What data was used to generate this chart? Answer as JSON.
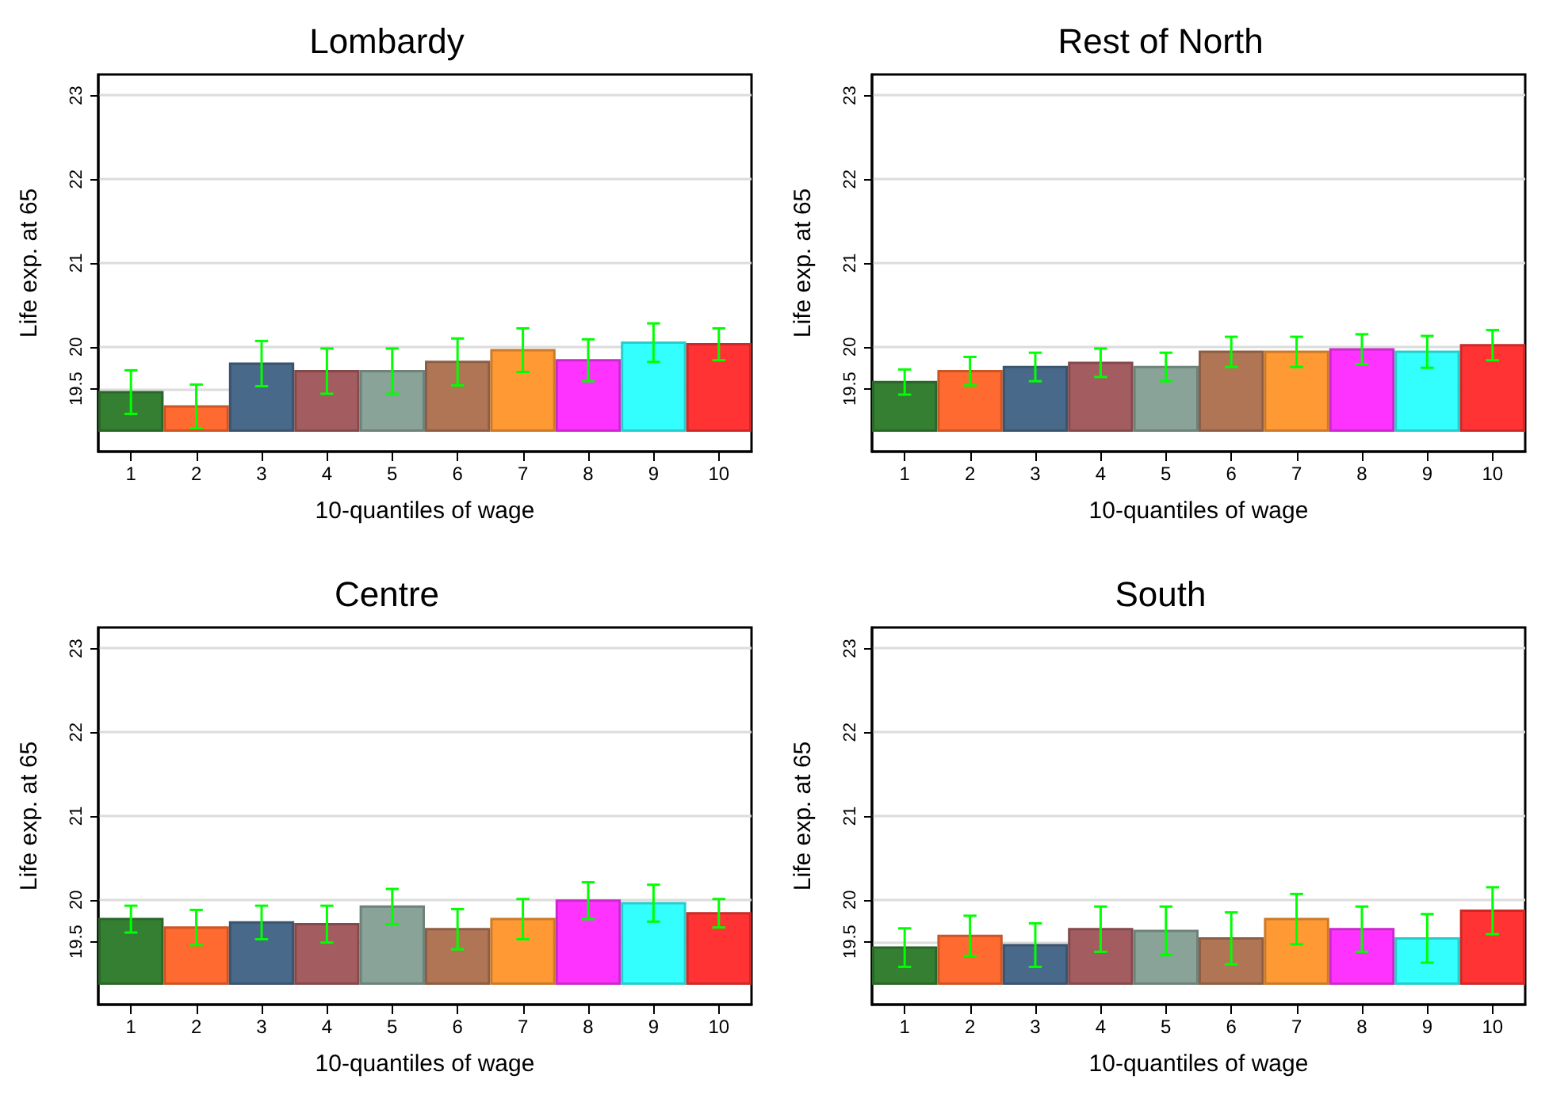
{
  "chart_data": [
    {
      "type": "bar",
      "title": "Lombardy",
      "xlabel": "10-quantiles of wage",
      "ylabel": "Life exp. at 65",
      "categories": [
        "1",
        "2",
        "3",
        "4",
        "5",
        "6",
        "7",
        "8",
        "9",
        "10"
      ],
      "base": [
        19,
        19,
        19,
        19,
        19,
        19,
        19,
        19,
        19,
        19
      ],
      "values": [
        0.46,
        0.29,
        0.8,
        0.71,
        0.71,
        0.82,
        0.96,
        0.84,
        1.05,
        1.03
      ],
      "errors": [
        0.26,
        0.26,
        0.27,
        0.27,
        0.27,
        0.28,
        0.26,
        0.25,
        0.23,
        0.19
      ],
      "colors": [
        "#347f32",
        "#ff6a30",
        "#48698a",
        "#a35c60",
        "#89a398",
        "#b07555",
        "#ff9933",
        "#ff33ff",
        "#33ffff",
        "#ff3333"
      ],
      "ylim": [
        18.75,
        23.25
      ],
      "yticks": [
        19.5,
        20,
        21,
        22,
        23
      ],
      "grid": "y"
    },
    {
      "type": "bar",
      "title": "Rest of North",
      "xlabel": "10-quantiles of wage",
      "ylabel": "Life exp. at 65",
      "categories": [
        "1",
        "2",
        "3",
        "4",
        "5",
        "6",
        "7",
        "8",
        "9",
        "10"
      ],
      "base": [
        19,
        19,
        19,
        19,
        19,
        19,
        19,
        19,
        19,
        19
      ],
      "values": [
        0.58,
        0.71,
        0.76,
        0.81,
        0.76,
        0.94,
        0.94,
        0.97,
        0.94,
        1.02
      ],
      "errors": [
        0.15,
        0.17,
        0.17,
        0.17,
        0.17,
        0.18,
        0.18,
        0.18,
        0.19,
        0.18
      ],
      "colors": [
        "#347f32",
        "#ff6a30",
        "#48698a",
        "#a35c60",
        "#89a398",
        "#b07555",
        "#ff9933",
        "#ff33ff",
        "#33ffff",
        "#ff3333"
      ],
      "ylim": [
        18.75,
        23.25
      ],
      "yticks": [
        19.5,
        20,
        21,
        22,
        23
      ],
      "grid": "y"
    },
    {
      "type": "bar",
      "title": "Centre",
      "xlabel": "10-quantiles of wage",
      "ylabel": "Life exp. at 65",
      "categories": [
        "1",
        "2",
        "3",
        "4",
        "5",
        "6",
        "7",
        "8",
        "9",
        "10"
      ],
      "base": [
        19,
        19,
        19,
        19,
        19,
        19,
        19,
        19,
        19,
        19
      ],
      "values": [
        0.77,
        0.67,
        0.73,
        0.71,
        0.92,
        0.65,
        0.77,
        0.99,
        0.96,
        0.84
      ],
      "errors": [
        0.16,
        0.21,
        0.2,
        0.22,
        0.21,
        0.24,
        0.24,
        0.22,
        0.22,
        0.17
      ],
      "colors": [
        "#347f32",
        "#ff6a30",
        "#48698a",
        "#a35c60",
        "#89a398",
        "#b07555",
        "#ff9933",
        "#ff33ff",
        "#33ffff",
        "#ff3333"
      ],
      "ylim": [
        18.75,
        23.25
      ],
      "yticks": [
        19.5,
        20,
        21,
        22,
        23
      ],
      "grid": "y"
    },
    {
      "type": "bar",
      "title": "South",
      "xlabel": "10-quantiles of wage",
      "ylabel": "Life exp. at 65",
      "categories": [
        "1",
        "2",
        "3",
        "4",
        "5",
        "6",
        "7",
        "8",
        "9",
        "10"
      ],
      "base": [
        19,
        19,
        19,
        19,
        19,
        19,
        19,
        19,
        19,
        19
      ],
      "values": [
        0.43,
        0.57,
        0.46,
        0.65,
        0.63,
        0.54,
        0.77,
        0.65,
        0.54,
        0.87
      ],
      "errors": [
        0.23,
        0.24,
        0.26,
        0.27,
        0.29,
        0.31,
        0.3,
        0.27,
        0.29,
        0.28
      ],
      "colors": [
        "#347f32",
        "#ff6a30",
        "#48698a",
        "#a35c60",
        "#89a398",
        "#b07555",
        "#ff9933",
        "#ff33ff",
        "#33ffff",
        "#ff3333"
      ],
      "ylim": [
        18.75,
        23.25
      ],
      "yticks": [
        19.5,
        20,
        21,
        22,
        23
      ],
      "grid": "y"
    }
  ]
}
